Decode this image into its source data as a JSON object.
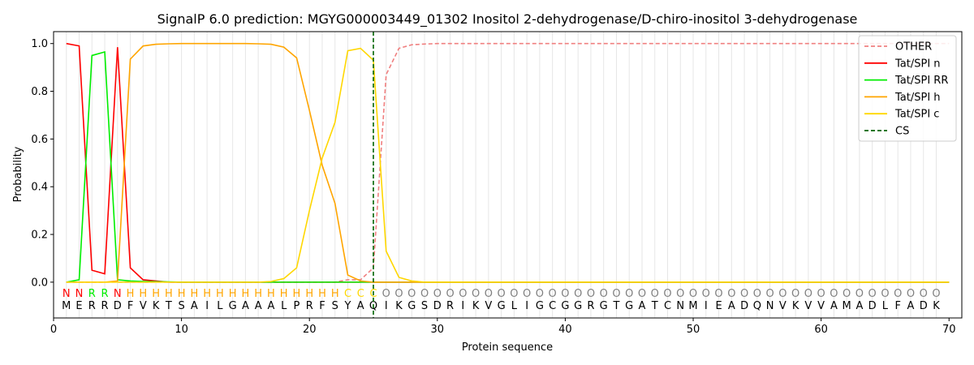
{
  "chart_data": {
    "type": "line",
    "title": "SignalP 6.0 prediction: MGYG000003449_01302 Inositol 2-dehydrogenase/D-chiro-inositol 3-dehydrogenase",
    "xlabel": "Protein sequence",
    "ylabel": "Probability",
    "xlim": [
      0,
      71
    ],
    "ylim": [
      -0.15,
      1.05
    ],
    "x_ticks": [
      0,
      10,
      20,
      30,
      40,
      50,
      60,
      70
    ],
    "y_ticks": [
      0.0,
      0.2,
      0.4,
      0.6,
      0.8,
      1.0
    ],
    "x_tick_labels": [
      "0",
      "10",
      "20",
      "30",
      "40",
      "50",
      "60",
      "70"
    ],
    "y_tick_labels": [
      "0.0",
      "0.2",
      "0.4",
      "0.6",
      "0.8",
      "1.0"
    ],
    "legend_position": "top-right",
    "sequence": [
      "M",
      "E",
      "R",
      "R",
      "D",
      "F",
      "V",
      "K",
      "T",
      "S",
      "A",
      "I",
      "L",
      "G",
      "A",
      "A",
      "A",
      "L",
      "P",
      "R",
      "F",
      "S",
      "Y",
      "A",
      "Q",
      "I",
      "K",
      "G",
      "S",
      "D",
      "R",
      "I",
      "K",
      "V",
      "G",
      "L",
      "I",
      "G",
      "C",
      "G",
      "G",
      "R",
      "G",
      "T",
      "G",
      "A",
      "T",
      "C",
      "N",
      "M",
      "I",
      "E",
      "A",
      "D",
      "Q",
      "N",
      "V",
      "K",
      "V",
      "V",
      "A",
      "M",
      "A",
      "D",
      "L",
      "F",
      "A",
      "D",
      "K"
    ],
    "labels": [
      "N",
      "N",
      "R",
      "R",
      "N",
      "H",
      "H",
      "H",
      "H",
      "H",
      "H",
      "H",
      "H",
      "H",
      "H",
      "H",
      "H",
      "H",
      "H",
      "H",
      "H",
      "H",
      "C",
      "C",
      "C",
      "O",
      "O",
      "O",
      "O",
      "O",
      "O",
      "O",
      "O",
      "O",
      "O",
      "O",
      "O",
      "O",
      "O",
      "O",
      "O",
      "O",
      "O",
      "O",
      "O",
      "O",
      "O",
      "O",
      "O",
      "O",
      "O",
      "O",
      "O",
      "O",
      "O",
      "O",
      "O",
      "O",
      "O",
      "O",
      "O",
      "O",
      "O",
      "O",
      "O",
      "O",
      "O",
      "O",
      "O",
      "O"
    ],
    "label_colors": {
      "N": "#ff0000",
      "R": "#00ee00",
      "H": "#ffa500",
      "C": "#ffd700",
      "O": "#808080"
    },
    "cs_position": 25,
    "series": [
      {
        "name": "OTHER",
        "color": "#f08080",
        "dashed": true,
        "values": [
          0.0,
          0.0,
          0.0,
          0.0,
          0.0,
          0.0,
          0.0,
          0.0,
          0.0,
          0.0,
          0.0,
          0.0,
          0.0,
          0.0,
          0.0,
          0.0,
          0.0,
          0.0,
          0.0,
          0.0,
          0.0,
          0.0,
          0.01,
          0.01,
          0.06,
          0.87,
          0.98,
          0.995,
          0.998,
          1.0,
          1.0,
          1.0,
          1.0,
          1.0,
          1.0,
          1.0,
          1.0,
          1.0,
          1.0,
          1.0,
          1.0,
          1.0,
          1.0,
          1.0,
          1.0,
          1.0,
          1.0,
          1.0,
          1.0,
          1.0,
          1.0,
          1.0,
          1.0,
          1.0,
          1.0,
          1.0,
          1.0,
          1.0,
          1.0,
          1.0,
          1.0,
          1.0,
          1.0,
          1.0,
          1.0,
          1.0,
          1.0,
          1.0,
          1.0,
          1.0
        ]
      },
      {
        "name": "Tat/SPI n",
        "color": "#ff0000",
        "dashed": false,
        "values": [
          1.0,
          0.99,
          0.05,
          0.035,
          0.985,
          0.06,
          0.01,
          0.005,
          0.0,
          0.0,
          0.0,
          0.0,
          0.0,
          0.0,
          0.0,
          0.0,
          0.0,
          0.0,
          0.0,
          0.0,
          0.0,
          0.0,
          0.0,
          0.0,
          0.0,
          0.0,
          0.0,
          0.0,
          0.0,
          0.0,
          0.0,
          0.0,
          0.0,
          0.0,
          0.0,
          0.0,
          0.0,
          0.0,
          0.0,
          0.0,
          0.0,
          0.0,
          0.0,
          0.0,
          0.0,
          0.0,
          0.0,
          0.0,
          0.0,
          0.0,
          0.0,
          0.0,
          0.0,
          0.0,
          0.0,
          0.0,
          0.0,
          0.0,
          0.0,
          0.0,
          0.0,
          0.0,
          0.0,
          0.0,
          0.0,
          0.0,
          0.0,
          0.0,
          0.0,
          0.0
        ]
      },
      {
        "name": "Tat/SPI RR",
        "color": "#00ee00",
        "dashed": false,
        "values": [
          0.0,
          0.01,
          0.95,
          0.965,
          0.01,
          0.005,
          0.003,
          0.002,
          0.001,
          0.0,
          0.0,
          0.0,
          0.0,
          0.0,
          0.0,
          0.0,
          0.0,
          0.0,
          0.0,
          0.0,
          0.0,
          0.0,
          0.0,
          0.0,
          0.0,
          0.0,
          0.0,
          0.0,
          0.0,
          0.0,
          0.0,
          0.0,
          0.0,
          0.0,
          0.0,
          0.0,
          0.0,
          0.0,
          0.0,
          0.0,
          0.0,
          0.0,
          0.0,
          0.0,
          0.0,
          0.0,
          0.0,
          0.0,
          0.0,
          0.0,
          0.0,
          0.0,
          0.0,
          0.0,
          0.0,
          0.0,
          0.0,
          0.0,
          0.0,
          0.0,
          0.0,
          0.0,
          0.0,
          0.0,
          0.0,
          0.0,
          0.0,
          0.0,
          0.0,
          0.0
        ]
      },
      {
        "name": "Tat/SPI h",
        "color": "#ffa500",
        "dashed": false,
        "values": [
          0.0,
          0.0,
          0.0,
          0.0,
          0.005,
          0.935,
          0.99,
          0.997,
          0.999,
          1.0,
          1.0,
          1.0,
          1.0,
          1.0,
          1.0,
          0.999,
          0.997,
          0.985,
          0.94,
          0.72,
          0.49,
          0.33,
          0.03,
          0.005,
          0.0,
          0.0,
          0.0,
          0.0,
          0.0,
          0.0,
          0.0,
          0.0,
          0.0,
          0.0,
          0.0,
          0.0,
          0.0,
          0.0,
          0.0,
          0.0,
          0.0,
          0.0,
          0.0,
          0.0,
          0.0,
          0.0,
          0.0,
          0.0,
          0.0,
          0.0,
          0.0,
          0.0,
          0.0,
          0.0,
          0.0,
          0.0,
          0.0,
          0.0,
          0.0,
          0.0,
          0.0,
          0.0,
          0.0,
          0.0,
          0.0,
          0.0,
          0.0,
          0.0,
          0.0,
          0.0
        ]
      },
      {
        "name": "Tat/SPI c",
        "color": "#ffd700",
        "dashed": false,
        "values": [
          0.0,
          0.0,
          0.0,
          0.0,
          0.0,
          0.0,
          0.0,
          0.0,
          0.0,
          0.0,
          0.0,
          0.0,
          0.0,
          0.0,
          0.0,
          0.0,
          0.003,
          0.015,
          0.06,
          0.3,
          0.52,
          0.67,
          0.97,
          0.98,
          0.93,
          0.13,
          0.02,
          0.005,
          0.0,
          0.0,
          0.0,
          0.0,
          0.0,
          0.0,
          0.0,
          0.0,
          0.0,
          0.0,
          0.0,
          0.0,
          0.0,
          0.0,
          0.0,
          0.0,
          0.0,
          0.0,
          0.0,
          0.0,
          0.0,
          0.0,
          0.0,
          0.0,
          0.0,
          0.0,
          0.0,
          0.0,
          0.0,
          0.0,
          0.0,
          0.0,
          0.0,
          0.0,
          0.0,
          0.0,
          0.0,
          0.0,
          0.0,
          0.0,
          0.0,
          0.0
        ]
      }
    ],
    "legend": [
      {
        "name": "OTHER",
        "color": "#f08080",
        "dashed": true
      },
      {
        "name": "Tat/SPI n",
        "color": "#ff0000",
        "dashed": false
      },
      {
        "name": "Tat/SPI RR",
        "color": "#00ee00",
        "dashed": false
      },
      {
        "name": "Tat/SPI h",
        "color": "#ffa500",
        "dashed": false
      },
      {
        "name": "Tat/SPI c",
        "color": "#ffd700",
        "dashed": false
      },
      {
        "name": "CS",
        "color": "#006400",
        "dashed": true
      }
    ]
  }
}
